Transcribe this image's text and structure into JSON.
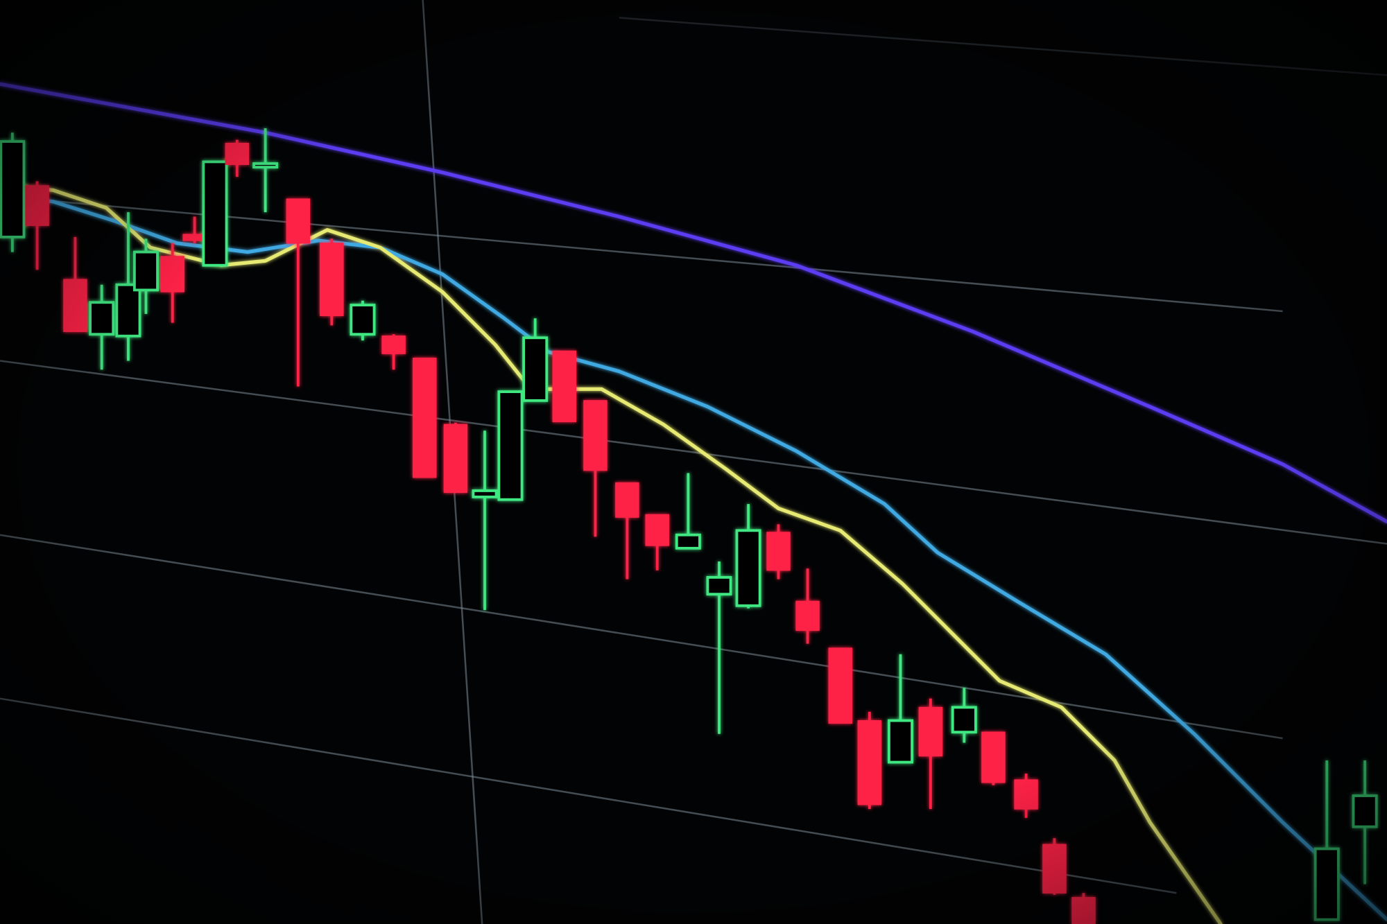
{
  "chart_data": {
    "type": "candlestick",
    "xlim": [
      0,
      1568
    ],
    "ylim": [
      0,
      1045
    ],
    "up_color": "#3fe882",
    "down_color": "#ff2347",
    "x": [
      14,
      42,
      85,
      115,
      145,
      165,
      195,
      220,
      243,
      268,
      300,
      337,
      375,
      410,
      445,
      480,
      515,
      548,
      577,
      605,
      638,
      673,
      709,
      743,
      778,
      813,
      846,
      880,
      913,
      950,
      983,
      1018,
      1052,
      1090,
      1123,
      1160,
      1192,
      1225,
      1500,
      1543
    ],
    "open": [
      777,
      835,
      729,
      667,
      665,
      717,
      755,
      780,
      745,
      883,
      856,
      820,
      770,
      667,
      665,
      640,
      565,
      483,
      480,
      592,
      648,
      592,
      499,
      463,
      425,
      373,
      360,
      443,
      365,
      312,
      230,
      183,
      245,
      217,
      217,
      163,
      90,
      30,
      5,
      110
    ],
    "high": [
      895,
      840,
      777,
      723,
      805,
      775,
      770,
      800,
      862,
      887,
      900,
      820,
      775,
      705,
      667,
      640,
      567,
      558,
      602,
      685,
      648,
      592,
      499,
      463,
      510,
      410,
      475,
      452,
      402,
      312,
      240,
      305,
      255,
      267,
      217,
      170,
      97,
      35,
      185,
      185
    ],
    "low": [
      760,
      740,
      670,
      627,
      637,
      690,
      680,
      770,
      745,
      845,
      805,
      608,
      677,
      660,
      627,
      505,
      488,
      355,
      480,
      592,
      568,
      438,
      390,
      400,
      425,
      215,
      357,
      390,
      317,
      227,
      130,
      183,
      130,
      205,
      157,
      120,
      33,
      0,
      5,
      45
    ],
    "close": [
      885,
      790,
      670,
      703,
      723,
      760,
      715,
      773,
      862,
      859,
      860,
      770,
      688,
      700,
      645,
      505,
      488,
      490,
      602,
      663,
      568,
      513,
      460,
      428,
      440,
      392,
      445,
      400,
      332,
      227,
      135,
      230,
      190,
      245,
      160,
      130,
      35,
      0,
      85,
      145
    ],
    "lines": [
      {
        "color": "#5b3cf2",
        "x": [
          0,
          300,
          500,
          700,
          900,
          1100,
          1300,
          1450,
          1568
        ],
        "values": [
          950,
          895,
          850,
          800,
          745,
          670,
          585,
          520,
          455
        ]
      },
      {
        "color": "#3fa9e2",
        "x": [
          0,
          60,
          130,
          200,
          280,
          360,
          430,
          500,
          570,
          620,
          700,
          800,
          900,
          1000,
          1060,
          1150,
          1250,
          1350,
          1450,
          1568
        ],
        "values": [
          825,
          817,
          795,
          770,
          760,
          773,
          765,
          735,
          685,
          647,
          625,
          585,
          535,
          475,
          420,
          365,
          305,
          215,
          115,
          5
        ]
      },
      {
        "color": "#e6ea72",
        "x": [
          0,
          60,
          120,
          170,
          250,
          300,
          370,
          430,
          500,
          560,
          600,
          680,
          750,
          820,
          880,
          950,
          1020,
          1080,
          1130,
          1200,
          1260,
          1300,
          1380
        ],
        "values": [
          835,
          830,
          810,
          765,
          745,
          750,
          785,
          765,
          715,
          655,
          605,
          605,
          565,
          515,
          470,
          445,
          385,
          325,
          275,
          245,
          185,
          115,
          0
        ]
      }
    ]
  }
}
